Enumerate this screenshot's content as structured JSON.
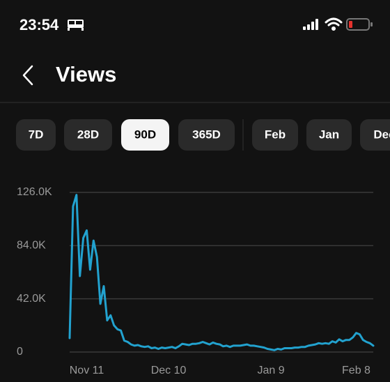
{
  "status_bar": {
    "time": "23:54"
  },
  "header": {
    "title": "Views"
  },
  "tabs": [
    {
      "label": "7D",
      "selected": false
    },
    {
      "label": "28D",
      "selected": false
    },
    {
      "label": "90D",
      "selected": true
    },
    {
      "label": "365D",
      "selected": false
    },
    {
      "label": "Feb",
      "selected": false
    },
    {
      "label": "Jan",
      "selected": false
    },
    {
      "label": "Dec",
      "selected": false
    }
  ],
  "chart_data": {
    "type": "line",
    "color": "#22a2cf",
    "grid": true,
    "x": [
      0,
      1,
      2,
      3,
      4,
      5,
      6,
      7,
      8,
      9,
      10,
      11,
      12,
      13,
      14,
      15,
      16,
      17,
      18,
      19,
      20,
      21,
      22,
      23,
      24,
      25,
      26,
      27,
      28,
      29,
      30,
      31,
      32,
      33,
      34,
      35,
      36,
      37,
      38,
      39,
      40,
      41,
      42,
      43,
      44,
      45,
      46,
      47,
      48,
      49,
      50,
      51,
      52,
      53,
      54,
      55,
      56,
      57,
      58,
      59,
      60,
      61,
      62,
      63,
      64,
      65,
      66,
      67,
      68,
      69,
      70,
      71,
      72,
      73,
      74,
      75,
      76,
      77,
      78,
      79,
      80,
      81,
      82,
      83,
      84,
      85,
      86,
      87,
      88,
      89
    ],
    "values": [
      11000,
      115000,
      124000,
      60000,
      90000,
      96000,
      65000,
      88000,
      75000,
      38000,
      52000,
      25000,
      29000,
      21000,
      18000,
      17000,
      9000,
      8000,
      6000,
      5000,
      5500,
      4500,
      4000,
      4500,
      3000,
      3500,
      2500,
      3500,
      3000,
      3500,
      4000,
      3000,
      4500,
      6500,
      6000,
      5500,
      6500,
      6500,
      7000,
      8000,
      7000,
      6000,
      7500,
      6500,
      6000,
      4500,
      5000,
      4000,
      5000,
      5000,
      5000,
      5500,
      6000,
      5000,
      5000,
      4500,
      4000,
      3500,
      2500,
      2000,
      1500,
      2500,
      2000,
      3000,
      3000,
      3000,
      3500,
      3500,
      4000,
      4000,
      5000,
      5500,
      6000,
      7000,
      6500,
      7000,
      6500,
      8500,
      7500,
      10000,
      8500,
      9500,
      9500,
      11500,
      15000,
      14000,
      9500,
      8000,
      7000,
      5000
    ],
    "xlim": [
      0,
      89
    ],
    "xticks": [
      {
        "value": 5,
        "label": "Nov 11"
      },
      {
        "value": 29,
        "label": "Dec 10"
      },
      {
        "value": 59,
        "label": "Jan 9"
      },
      {
        "value": 84,
        "label": "Feb 8"
      }
    ],
    "ylim": [
      0,
      126000
    ],
    "yticks": [
      {
        "value": 0,
        "label": "0"
      },
      {
        "value": 42000,
        "label": "42.0K"
      },
      {
        "value": 84000,
        "label": "84.0K"
      },
      {
        "value": 126000,
        "label": "126.0K"
      }
    ]
  }
}
